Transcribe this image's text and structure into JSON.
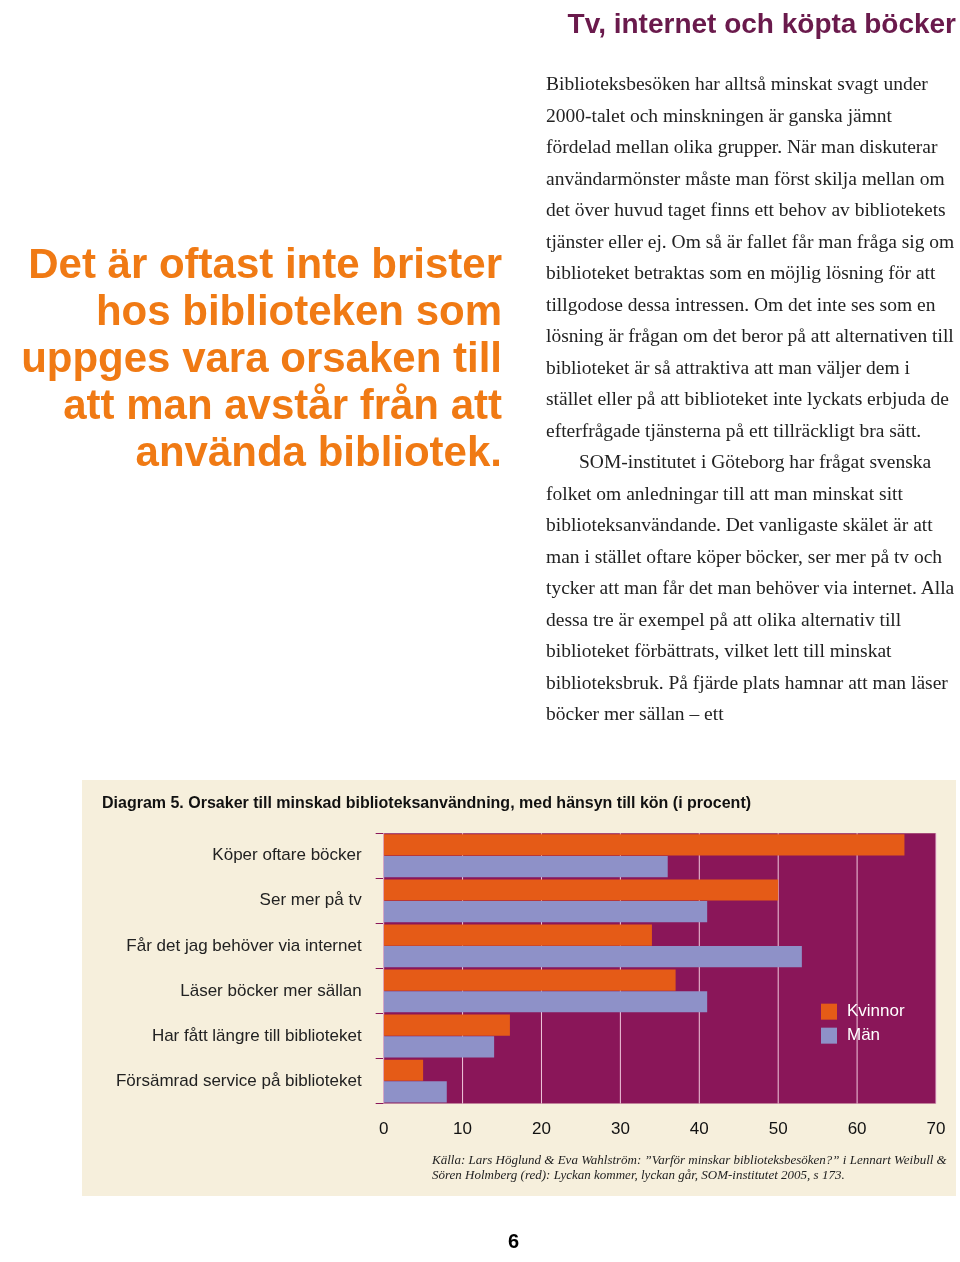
{
  "chart_data": {
    "type": "bar",
    "orientation": "horizontal",
    "title": "Diagram 5. Orsaker till minskad biblioteksanvändning, med hänsyn till kön (i procent)",
    "categories": [
      "Köper oftare böcker",
      "Ser mer på tv",
      "Får det jag behöver via internet",
      "Läser böcker mer sällan",
      "Har fått längre till biblioteket",
      "Försämrad service på biblioteket"
    ],
    "series": [
      {
        "name": "Kvinnor",
        "color": "#e55b17",
        "values": [
          66,
          50,
          34,
          37,
          16,
          5
        ]
      },
      {
        "name": "Män",
        "color": "#8e91c8",
        "values": [
          36,
          41,
          53,
          41,
          14,
          8
        ]
      }
    ],
    "xlim": [
      0,
      70
    ],
    "xticks": [
      0,
      10,
      20,
      30,
      40,
      50,
      60,
      70
    ],
    "grid": "x",
    "legend": "right",
    "annotations": [
      "Tv, internet och köpta böcker",
      "Det är oftast inte brister hos biblioteken som uppges vara orsaken till att man avstår från att använda bibliotek.",
      "Biblioteksbesöken har alltså minskat svagt under 2000-talet och minskningen är ganska jämnt fördelad mellan olika grupper. När man diskuterar användarmönster måste man först skilja mellan om det över huvud taget finns ett behov av bibliotekets tjänster eller ej. Om så är fallet får man fråga sig om biblioteket betraktas som en möjlig lösning för att tillgodose dessa intressen. Om det inte ses som en lösning är frågan om det beror på att alternativen till biblioteket är så attraktiva att man väljer dem i stället eller på att biblioteket inte lyckats erbjuda de efterfrågade tjänsterna på ett tillräckligt bra sätt.",
      "SOM-institutet i Göteborg har frågat svenska folket om anledningar till att man minskat sitt biblioteksanvändande. Det vanligaste skälet är att man i stället oftare köper böcker, ser mer på tv och tycker att man får det man behöver via internet. Alla dessa tre är exempel på att olika alternativ till biblioteket förbättrats, vilket lett till minskat biblioteksbruk. På fjärde plats hamnar att man läser böcker mer sällan – ett",
      "Källa: Lars Höglund & Eva Wahlström: ”Varför minskar biblioteksbesöken?” i Lennart Weibull & Sören Holmberg (red): Lyckan kommer, lyckan går, SOM-institutet 2005, s 173.",
      "6"
    ]
  }
}
